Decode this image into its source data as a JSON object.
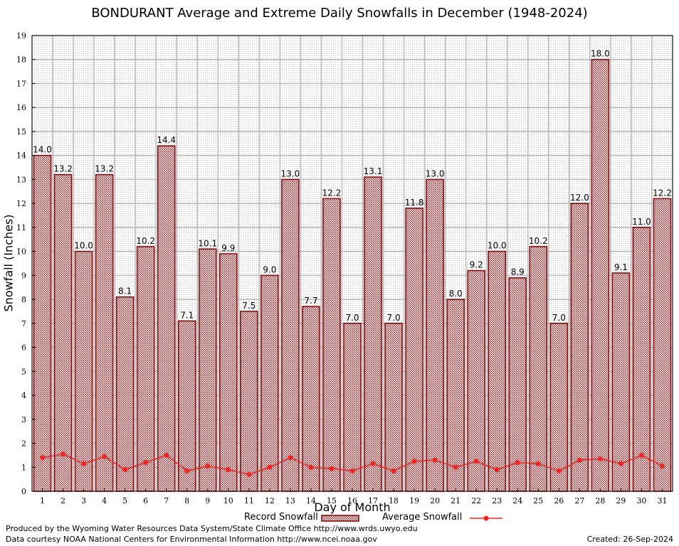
{
  "chart_data": {
    "type": "bar",
    "title": "BONDURANT Average and Extreme Daily Snowfalls in December (1948-2024)",
    "xlabel": "Day of Month",
    "ylabel": "Snowfall (Inches)",
    "ylim": [
      0,
      19
    ],
    "yticks": [
      0,
      1,
      2,
      3,
      4,
      5,
      6,
      7,
      8,
      9,
      10,
      11,
      12,
      13,
      14,
      15,
      16,
      17,
      18,
      19
    ],
    "grid": true,
    "legend_position": "bottom",
    "categories": [
      "1",
      "2",
      "3",
      "4",
      "5",
      "6",
      "7",
      "8",
      "9",
      "10",
      "11",
      "12",
      "13",
      "14",
      "15",
      "16",
      "17",
      "18",
      "19",
      "20",
      "21",
      "22",
      "23",
      "24",
      "25",
      "26",
      "27",
      "28",
      "29",
      "30",
      "31"
    ],
    "series": [
      {
        "name": "Record Snowfall",
        "type": "bar",
        "color": "#8b0000",
        "values": [
          14.0,
          13.2,
          10.0,
          13.2,
          8.1,
          10.2,
          14.4,
          7.1,
          10.1,
          9.9,
          7.5,
          9.0,
          13.0,
          7.7,
          12.2,
          7.0,
          13.1,
          7.0,
          11.8,
          13.0,
          8.0,
          9.2,
          10.0,
          8.9,
          10.2,
          7.0,
          12.0,
          18.0,
          9.1,
          11.0,
          12.2
        ],
        "labels": [
          "14.0",
          "13.2",
          "10.0",
          "13.2",
          "8.1",
          "10.2",
          "14.4",
          "7.1",
          "10.1",
          "9.9",
          "7.5",
          "9.0",
          "13.0",
          "7.7",
          "12.2",
          "7.0",
          "13.1",
          "7.0",
          "11.8",
          "13.0",
          "8.0",
          "9.2",
          "10.0",
          "8.9",
          "10.2",
          "7.0",
          "12.0",
          "18.0",
          "9.1",
          "11.0",
          "12.2"
        ]
      },
      {
        "name": "Average Snowfall",
        "type": "line",
        "color": "#ff2020",
        "values": [
          1.4,
          1.55,
          1.15,
          1.45,
          0.9,
          1.2,
          1.5,
          0.85,
          1.05,
          0.9,
          0.7,
          1.0,
          1.4,
          1.0,
          0.95,
          0.85,
          1.15,
          0.85,
          1.25,
          1.3,
          1.0,
          1.25,
          0.9,
          1.2,
          1.15,
          0.85,
          1.3,
          1.35,
          1.15,
          1.5,
          1.05
        ]
      }
    ]
  },
  "footer": {
    "credit_line_1": "Produced by the Wyoming Water Resources Data System/State Climate Office http://www.wrds.uwyo.edu",
    "credit_line_2": "Data courtesy NOAA National Centers for Environmental Information http://www.ncei.noaa.gov",
    "created": "Created:  26-Sep-2024"
  }
}
